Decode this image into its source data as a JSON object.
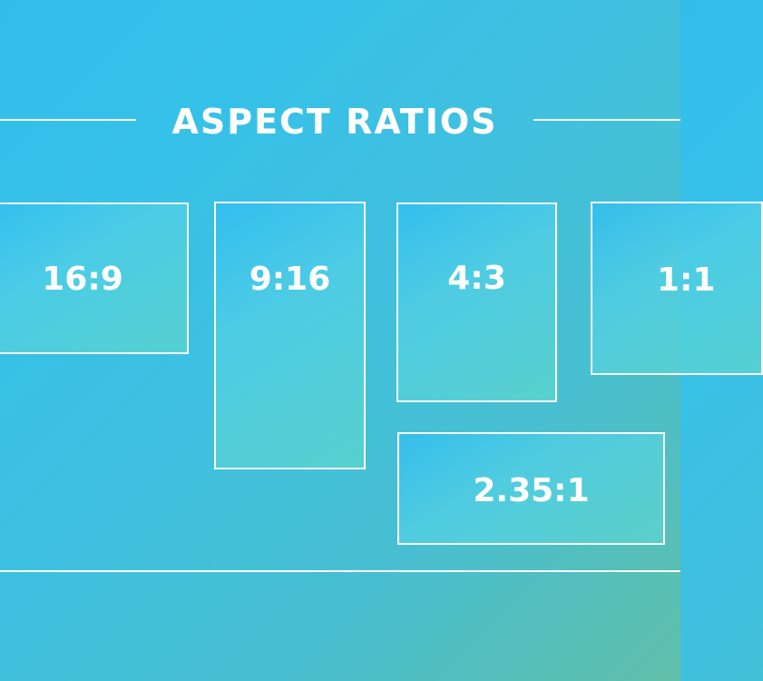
{
  "title": "ASPECT RATIOS",
  "ratios": {
    "r16_9": "16:9",
    "r9_16": "9:16",
    "r4_3": "4:3",
    "r1_1": "1:1",
    "r235_1": "2.35:1"
  },
  "colors": {
    "background_start": "#33bdeb",
    "background_end": "#60bfa8",
    "line": "#ffffff",
    "text": "#ffffff"
  }
}
